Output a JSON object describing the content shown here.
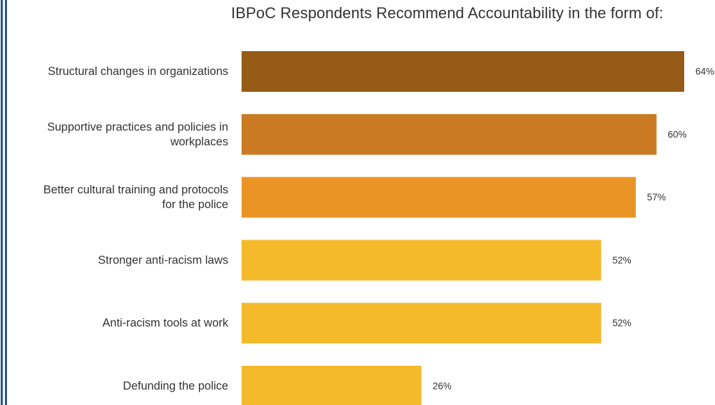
{
  "chart_data": {
    "type": "bar",
    "orientation": "horizontal",
    "title": "IBPoC Respondents Recommend Accountability in the form of:",
    "categories": [
      [
        "Structural changes in organizations"
      ],
      [
        "Supportive practices and policies in",
        "workplaces"
      ],
      [
        "Better cultural training and protocols",
        "for the police"
      ],
      [
        "Stronger anti-racism laws"
      ],
      [
        "Anti-racism tools at work"
      ],
      [
        "Defunding the police"
      ]
    ],
    "values": [
      64,
      60,
      57,
      52,
      52,
      26
    ],
    "value_labels": [
      "64%",
      "60%",
      "57%",
      "52%",
      "52%",
      "26%"
    ],
    "colors": [
      "#955b17",
      "#c97a23",
      "#ea9426",
      "#f5b92c",
      "#f5b92c",
      "#f5b92c"
    ],
    "xlim": [
      0,
      64
    ],
    "grid": false,
    "legend": "none"
  }
}
